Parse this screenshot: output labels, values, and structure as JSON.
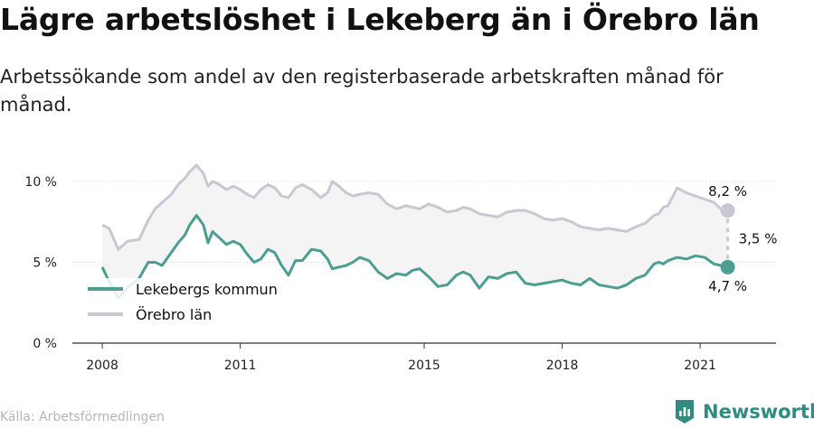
{
  "title": "Lägre arbetslöshet i Lekeberg än i Örebro län",
  "subtitle": "Arbetssökande som andel av den registerbaserade arbetskraften månad för månad.",
  "source": "Källa: Arbetsförmedlingen",
  "brand": "Newsworthy",
  "colors": {
    "lekeberg": "#4c9e92",
    "orebro": "#c9c8d2",
    "band": "#f4f4f5",
    "brand": "#2f8c80"
  },
  "chart_data": {
    "type": "line",
    "x_unit": "year",
    "xlim": [
      2007.35,
      2022.65
    ],
    "ylim": [
      0,
      11
    ],
    "y_ticks": [
      {
        "value": 0,
        "label": "0 %"
      },
      {
        "value": 5,
        "label": "5 %"
      },
      {
        "value": 10,
        "label": "10 %"
      }
    ],
    "x_ticks": [
      {
        "value": 2008,
        "label": "2008"
      },
      {
        "value": 2011,
        "label": "2011"
      },
      {
        "value": 2015,
        "label": "2015"
      },
      {
        "value": 2018,
        "label": "2018"
      },
      {
        "value": 2021,
        "label": "2021"
      }
    ],
    "series": [
      {
        "name": "Örebro län",
        "color": "#c9c8d2",
        "x": [
          2008.0,
          2008.15,
          2008.35,
          2008.55,
          2008.8,
          2009.0,
          2009.15,
          2009.3,
          2009.5,
          2009.65,
          2009.8,
          2009.9,
          2010.05,
          2010.2,
          2010.3,
          2010.4,
          2010.55,
          2010.7,
          2010.85,
          2011.0,
          2011.15,
          2011.3,
          2011.45,
          2011.6,
          2011.75,
          2011.9,
          2012.05,
          2012.2,
          2012.35,
          2012.55,
          2012.75,
          2012.9,
          2013.0,
          2013.15,
          2013.3,
          2013.45,
          2013.6,
          2013.8,
          2014.0,
          2014.2,
          2014.4,
          2014.6,
          2014.75,
          2014.9,
          2015.1,
          2015.3,
          2015.5,
          2015.7,
          2015.85,
          2016.0,
          2016.2,
          2016.4,
          2016.6,
          2016.8,
          2017.0,
          2017.2,
          2017.4,
          2017.6,
          2017.8,
          2018.0,
          2018.2,
          2018.4,
          2018.6,
          2018.8,
          2019.0,
          2019.2,
          2019.4,
          2019.6,
          2019.8,
          2020.0,
          2020.1,
          2020.2,
          2020.3,
          2020.5,
          2020.7,
          2020.9,
          2021.1,
          2021.3,
          2021.45,
          2021.6
        ],
        "values": [
          7.3,
          7.1,
          5.8,
          6.3,
          6.4,
          7.6,
          8.3,
          8.7,
          9.2,
          9.8,
          10.2,
          10.6,
          11.0,
          10.5,
          9.7,
          10.0,
          9.8,
          9.5,
          9.7,
          9.5,
          9.2,
          9.0,
          9.5,
          9.8,
          9.6,
          9.1,
          9.0,
          9.6,
          9.8,
          9.5,
          9.0,
          9.3,
          10.0,
          9.7,
          9.3,
          9.1,
          9.2,
          9.3,
          9.2,
          8.6,
          8.3,
          8.5,
          8.4,
          8.3,
          8.6,
          8.4,
          8.1,
          8.2,
          8.4,
          8.3,
          8.0,
          7.9,
          7.8,
          8.1,
          8.2,
          8.2,
          8.0,
          7.7,
          7.6,
          7.7,
          7.5,
          7.2,
          7.1,
          7.0,
          7.1,
          7.0,
          6.9,
          7.2,
          7.4,
          7.9,
          8.0,
          8.4,
          8.5,
          9.6,
          9.3,
          9.1,
          8.9,
          8.7,
          8.3,
          8.2
        ]
      },
      {
        "name": "Lekebergs kommun",
        "color": "#4c9e92",
        "x": [
          2008.0,
          2008.15,
          2008.35,
          2008.55,
          2008.8,
          2009.0,
          2009.15,
          2009.3,
          2009.5,
          2009.65,
          2009.8,
          2009.9,
          2010.05,
          2010.2,
          2010.3,
          2010.4,
          2010.55,
          2010.7,
          2010.85,
          2011.0,
          2011.15,
          2011.3,
          2011.45,
          2011.6,
          2011.75,
          2011.9,
          2012.05,
          2012.2,
          2012.35,
          2012.55,
          2012.75,
          2012.9,
          2013.0,
          2013.15,
          2013.3,
          2013.45,
          2013.6,
          2013.8,
          2014.0,
          2014.2,
          2014.4,
          2014.6,
          2014.75,
          2014.9,
          2015.1,
          2015.3,
          2015.5,
          2015.7,
          2015.85,
          2016.0,
          2016.2,
          2016.4,
          2016.6,
          2016.8,
          2017.0,
          2017.2,
          2017.4,
          2017.6,
          2017.8,
          2018.0,
          2018.2,
          2018.4,
          2018.6,
          2018.8,
          2019.0,
          2019.2,
          2019.4,
          2019.6,
          2019.8,
          2020.0,
          2020.1,
          2020.2,
          2020.3,
          2020.5,
          2020.7,
          2020.9,
          2021.1,
          2021.3,
          2021.45,
          2021.6
        ],
        "values": [
          4.7,
          3.8,
          2.8,
          3.4,
          4.0,
          5.0,
          5.0,
          4.8,
          5.6,
          6.2,
          6.7,
          7.3,
          7.9,
          7.3,
          6.2,
          6.9,
          6.5,
          6.1,
          6.3,
          6.1,
          5.5,
          5.0,
          5.2,
          5.8,
          5.6,
          4.8,
          4.2,
          5.1,
          5.1,
          5.8,
          5.7,
          5.2,
          4.6,
          4.7,
          4.8,
          5.0,
          5.3,
          5.1,
          4.4,
          4.0,
          4.3,
          4.2,
          4.5,
          4.6,
          4.1,
          3.5,
          3.6,
          4.2,
          4.4,
          4.2,
          3.4,
          4.1,
          4.0,
          4.3,
          4.4,
          3.7,
          3.6,
          3.7,
          3.8,
          3.9,
          3.7,
          3.6,
          4.0,
          3.6,
          3.5,
          3.4,
          3.6,
          4.0,
          4.2,
          4.9,
          5.0,
          4.9,
          5.1,
          5.3,
          5.2,
          5.4,
          5.3,
          4.9,
          4.8,
          4.7
        ]
      }
    ],
    "end_labels": {
      "orebro": "8,2 %",
      "lekeberg": "4,7 %",
      "diff": "3,5 %"
    }
  }
}
